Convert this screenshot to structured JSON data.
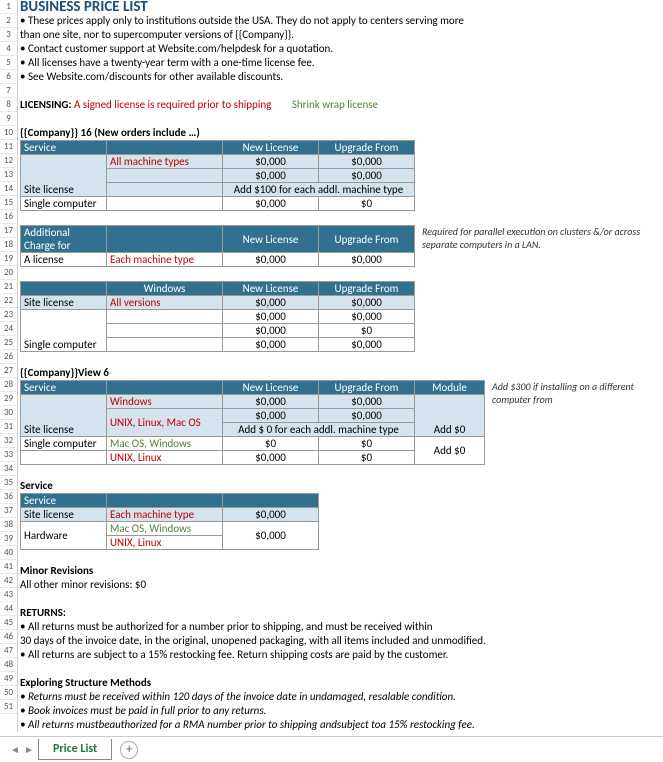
{
  "title": "BUSINESS PRICE LIST",
  "bullets": [
    "• These prices apply only to institutions outside the USA. They do not apply to centers serving more",
    "   than one site, nor to supercomputer versions of {{Company}}.",
    "• Contact customer support at Website.com/helpdesk for a quotation.",
    "• All licenses have a twenty-year term with a one-time license fee.",
    "• See Website.com/discounts for other available discounts."
  ],
  "lic": {
    "label": "LICENSING:",
    "red": "A signed license is required prior to shipping",
    "grn": "Shrink wrap license"
  },
  "sec1": {
    "caption": "{{Company}} 16 (New orders include …)",
    "cols": [
      "Service",
      "",
      "New License",
      "Upgrade From"
    ],
    "r1": {
      "b": "All machine types",
      "c": "$0,000",
      "d": "$0,000"
    },
    "r2": {
      "c": "$0,000",
      "d": "$0,000"
    },
    "r3": {
      "a": "Site license",
      "cd": "Add $100 for each addl. machine type"
    },
    "r4": {
      "a": "Single computer",
      "c": "$0,000",
      "d": "$0"
    }
  },
  "sec2": {
    "cols": [
      "Additional Charge for",
      "",
      "New License",
      "Upgrade From"
    ],
    "r1": {
      "a": "A license",
      "b": "Each machine type",
      "c": "$0,000",
      "d": "$0,000"
    },
    "note": "Required for parallel execution on clusters &/or across separate computers in a LAN."
  },
  "sec3": {
    "cols": [
      "",
      "Windows",
      "New License",
      "Upgrade From"
    ],
    "r1": {
      "a": "Site license",
      "b": "All versions",
      "c": "$0,000",
      "d": "$0,000"
    },
    "r2": {
      "c": "$0,000",
      "d": "$0,000"
    },
    "r3": {
      "c": "$0,000",
      "d": "$0"
    },
    "r4": {
      "a": "Single computer",
      "c": "$0,000",
      "d": "$0,000"
    }
  },
  "sec4": {
    "caption": "{{Company}}View 6",
    "cols": [
      "Service",
      "",
      "New License",
      "Upgrade From",
      "Module"
    ],
    "r1": {
      "b": "Windows",
      "c": "$0,000",
      "d": "$0,000"
    },
    "r2": {
      "b": "UNIX, Linux, Mac OS",
      "c": "$0,000",
      "d": "$0,000"
    },
    "r3": {
      "a": "Site license",
      "cd": "Add $ 0 for each addl. machine type",
      "e": "Add $0"
    },
    "r4": {
      "a": "Single computer",
      "b": "Mac OS, Windows",
      "c": "$0",
      "d": "$0",
      "e": "Add $0"
    },
    "r5": {
      "b": "UNIX, Linux",
      "c": "$0,000",
      "d": "$0"
    },
    "note": "Add $300 if installing on a different computer from"
  },
  "sec5": {
    "h": "Service",
    "cols": [
      "Service",
      "",
      ""
    ],
    "r1": {
      "a": "Site license",
      "b": "Each machine type",
      "c": "$0,000"
    },
    "r2": {
      "a": "Hardware",
      "b": "Mac OS, Windows",
      "c": "$0,000"
    },
    "r3": {
      "b": "UNIX, Linux"
    }
  },
  "minor": {
    "h": "Minor Revisions",
    "t": "All other minor revisions: $0"
  },
  "returns": {
    "h": "RETURNS:",
    "l1": "• All returns must be authorized for a number prior to shipping, and must be received within",
    "l2": "   30 days of the invoice date, in the original, unopened packaging, with all items included and unmodified.",
    "l3": "• All returns are subject to a 15% restocking fee. Return shipping costs are paid by the customer."
  },
  "esm": {
    "h": "Exploring Structure Methods",
    "l1": "• Returns must be received within 120 days of the invoice date in undamaged, resalable condition.",
    "l2": "• Book invoices must be paid in full prior to any returns.",
    "l3": "• All returns mustbeauthorized for a RMA number prior to shipping andsubject toa 15% restocking fee."
  },
  "tab": "Price List"
}
